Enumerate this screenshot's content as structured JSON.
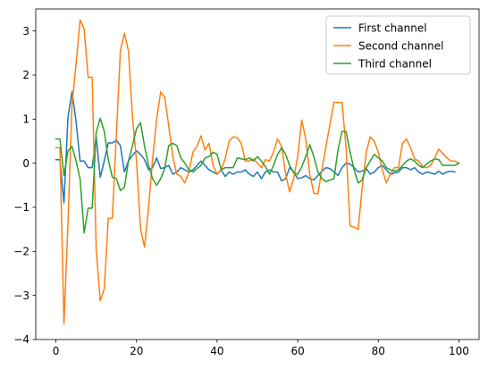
{
  "chart_data": {
    "type": "line",
    "title": "",
    "xlabel": "",
    "ylabel": "",
    "xlim": [
      -5,
      105
    ],
    "ylim": [
      -4,
      3.5
    ],
    "xticks": [
      0,
      20,
      40,
      60,
      80,
      100
    ],
    "yticks": [
      -4,
      -3,
      -2,
      -1,
      0,
      1,
      2,
      3
    ],
    "grid": false,
    "legend_position": "top-right",
    "series": [
      {
        "name": "First channel",
        "color": "#1f77b4",
        "values": [
          0.08,
          0.08,
          -0.9,
          1.05,
          1.62,
          0.95,
          0.05,
          0.05,
          -0.1,
          -0.1,
          0.6,
          -0.32,
          0.05,
          0.46,
          0.46,
          0.52,
          0.4,
          -0.2,
          0.05,
          0.18,
          0.28,
          0.2,
          0.08,
          -0.15,
          -0.1,
          0.12,
          -0.12,
          -0.1,
          -0.05,
          -0.25,
          -0.2,
          -0.1,
          -0.15,
          -0.2,
          -0.15,
          -0.05,
          0.05,
          -0.05,
          -0.15,
          -0.2,
          -0.25,
          -0.15,
          -0.3,
          -0.2,
          -0.25,
          -0.2,
          -0.2,
          -0.15,
          -0.25,
          -0.3,
          -0.2,
          -0.35,
          -0.2,
          -0.15,
          -0.2,
          -0.2,
          -0.4,
          -0.35,
          -0.1,
          -0.2,
          -0.35,
          -0.33,
          -0.28,
          -0.35,
          -0.38,
          -0.28,
          -0.18,
          -0.1,
          -0.12,
          -0.2,
          -0.28,
          -0.1,
          0.0,
          -0.02,
          -0.1,
          -0.2,
          -0.18,
          -0.12,
          -0.25,
          -0.2,
          -0.1,
          -0.05,
          -0.15,
          -0.25,
          -0.22,
          -0.2,
          -0.1,
          -0.1,
          -0.15,
          -0.1,
          -0.2,
          -0.25,
          -0.2,
          -0.22,
          -0.25,
          -0.18,
          -0.25,
          -0.2,
          -0.18,
          -0.2
        ]
      },
      {
        "name": "Second channel",
        "color": "#ff7f0e",
        "values": [
          0.35,
          0.35,
          -3.65,
          -1.35,
          1.35,
          2.25,
          3.25,
          3.05,
          1.95,
          1.95,
          -1.95,
          -3.12,
          -2.85,
          -1.25,
          -1.25,
          0.65,
          2.55,
          2.95,
          2.55,
          1.05,
          0.05,
          -1.5,
          -1.9,
          -1.0,
          0.1,
          1.0,
          1.62,
          1.5,
          0.85,
          0.15,
          -0.25,
          -0.3,
          -0.45,
          -0.2,
          0.25,
          0.38,
          0.62,
          0.3,
          0.45,
          -0.05,
          -0.25,
          -0.15,
          0.1,
          0.5,
          0.6,
          0.58,
          0.45,
          0.05,
          0.05,
          0.1,
          0.0,
          -0.1,
          0.08,
          0.05,
          0.25,
          0.55,
          0.38,
          -0.25,
          -0.65,
          -0.35,
          0.15,
          0.98,
          0.55,
          -0.25,
          -0.68,
          -0.7,
          -0.15,
          0.38,
          0.88,
          1.38,
          1.38,
          1.38,
          0.35,
          -1.42,
          -1.45,
          -1.5,
          -0.55,
          0.25,
          0.6,
          0.5,
          0.25,
          -0.15,
          -0.45,
          -0.25,
          -0.1,
          -0.1,
          0.45,
          0.55,
          0.35,
          0.1,
          0.05,
          -0.08,
          -0.1,
          -0.05,
          0.12,
          0.32,
          0.22,
          0.12,
          0.05,
          0.05,
          0.0
        ]
      },
      {
        "name": "Third channel",
        "color": "#2ca02c",
        "values": [
          0.55,
          0.55,
          -0.28,
          0.28,
          0.38,
          0.05,
          -0.35,
          -1.58,
          -1.02,
          -1.02,
          0.7,
          1.02,
          0.72,
          0.08,
          -0.32,
          -0.35,
          -0.62,
          -0.55,
          0.05,
          0.4,
          0.78,
          0.92,
          0.38,
          -0.05,
          -0.35,
          -0.5,
          -0.35,
          -0.12,
          0.4,
          0.45,
          0.4,
          0.12,
          0.0,
          -0.15,
          -0.2,
          -0.12,
          -0.05,
          0.12,
          0.15,
          0.25,
          0.2,
          -0.15,
          -0.1,
          -0.1,
          -0.1,
          0.12,
          0.1,
          0.08,
          0.12,
          0.05,
          0.15,
          0.05,
          -0.08,
          -0.25,
          -0.05,
          0.2,
          0.35,
          0.2,
          -0.05,
          -0.22,
          -0.25,
          -0.08,
          0.15,
          0.42,
          0.15,
          -0.2,
          -0.35,
          -0.42,
          -0.38,
          -0.35,
          0.3,
          0.72,
          0.72,
          0.25,
          -0.15,
          -0.45,
          -0.38,
          -0.1,
          0.05,
          0.2,
          0.12,
          0.05,
          -0.1,
          -0.15,
          -0.18,
          -0.15,
          -0.05,
          0.05,
          0.1,
          0.05,
          -0.05,
          -0.1,
          -0.02,
          0.05,
          0.1,
          0.08,
          -0.05,
          -0.05,
          -0.05,
          -0.05,
          0.0
        ]
      }
    ]
  }
}
